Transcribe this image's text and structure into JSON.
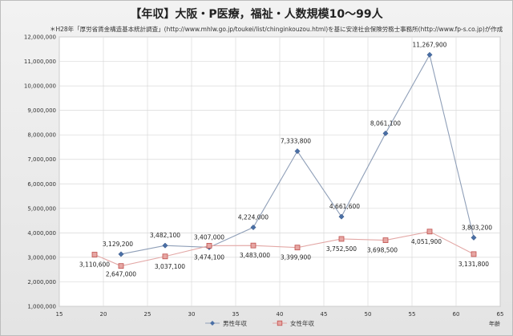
{
  "chart_data": {
    "type": "line",
    "title": "【年収】大阪・P医療，福祉・人数規模10〜99人",
    "subtitle": "＊H28年「厚労省賃金構造基本統計調査」(http://www.mhlw.go.jp/toukei/list/chinginkouzou.html)を基に安達社会保険労務士事務所(http://www.fp-s.co.jp)が作成",
    "xlabel": "年齢",
    "ylabel": "",
    "xlim": [
      15,
      65
    ],
    "ylim": [
      1000000,
      12000000
    ],
    "xticks": [
      "15",
      "20",
      "25",
      "30",
      "35",
      "40",
      "45",
      "50",
      "55",
      "60",
      "65"
    ],
    "yticks": [
      "1,000,000",
      "2,000,000",
      "3,000,000",
      "4,000,000",
      "5,000,000",
      "6,000,000",
      "7,000,000",
      "8,000,000",
      "9,000,000",
      "10,000,000",
      "11,000,000",
      "12,000,000"
    ],
    "grid": true,
    "legend": "bottom",
    "series": [
      {
        "name": "男性年収",
        "color": "#4a6fa5",
        "marker": "diamond",
        "x": [
          22,
          27,
          32,
          37,
          42,
          47,
          52,
          57,
          62
        ],
        "y": [
          3129200,
          3482100,
          3407000,
          4224000,
          7333800,
          4661600,
          8061100,
          11267900,
          3803200
        ],
        "labels": [
          "3,129,200",
          "3,482,100",
          "3,407,000",
          "4,224,000",
          "7,333,800",
          "4,661,600",
          "8,061,100",
          "11,267,900",
          "3,803,200"
        ]
      },
      {
        "name": "女性年収",
        "color": "#c0504d",
        "marker": "square",
        "x": [
          19,
          22,
          27,
          32,
          37,
          42,
          47,
          52,
          57,
          62
        ],
        "y": [
          3110600,
          2647000,
          3037100,
          3474100,
          3483000,
          3399900,
          3752500,
          3698500,
          4051900,
          3131800
        ],
        "labels": [
          "3,110,600",
          "2,647,000",
          "3,037,100",
          "3,474,100",
          "3,483,000",
          "3,399,900",
          "3,752,500",
          "3,698,500",
          "4,051,900",
          "3,131,800"
        ]
      }
    ]
  }
}
